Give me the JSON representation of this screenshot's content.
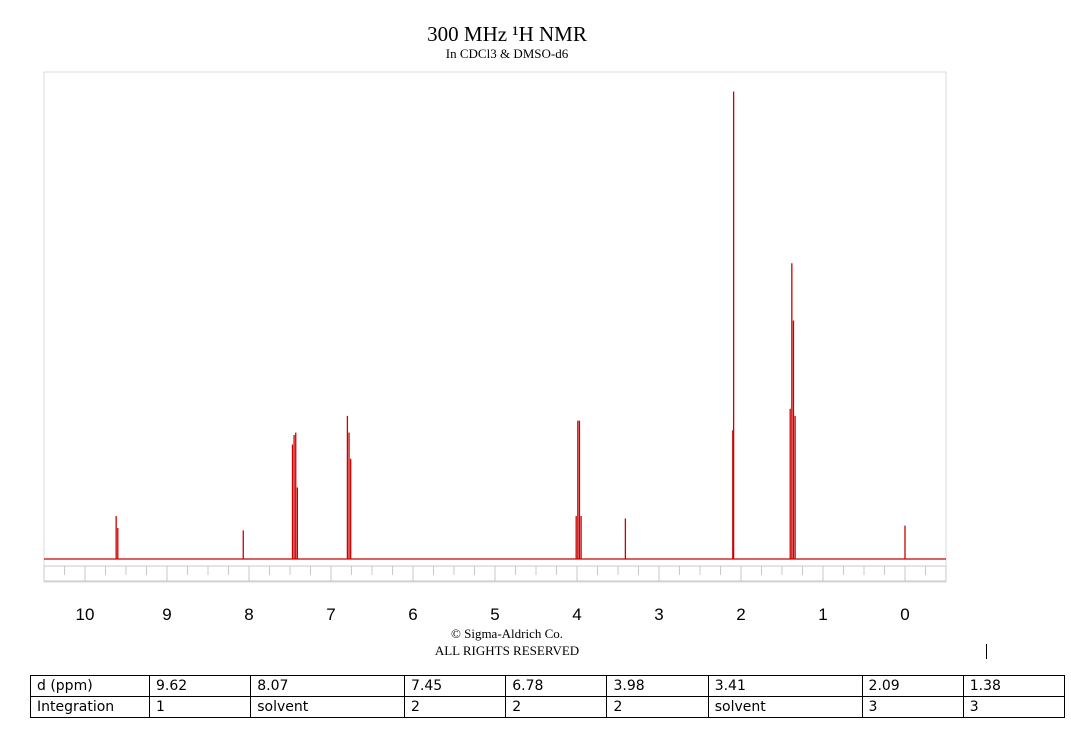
{
  "chart_data": {
    "type": "line",
    "title": "300 MHz ¹H NMR",
    "subtitle": "In CDCl3 & DMSO-d6",
    "xlim": [
      10.5,
      -0.5
    ],
    "ylim": [
      0,
      1
    ],
    "x_ticks": [
      10,
      9,
      8,
      7,
      6,
      5,
      4,
      3,
      2,
      1,
      0
    ],
    "grid": false,
    "line_color": "#cc0000",
    "peaks": [
      {
        "x": 9.62,
        "y": 0.09
      },
      {
        "x": 9.6,
        "y": 0.065
      },
      {
        "x": 8.07,
        "y": 0.06
      },
      {
        "x": 7.47,
        "y": 0.24
      },
      {
        "x": 7.45,
        "y": 0.26
      },
      {
        "x": 7.43,
        "y": 0.265
      },
      {
        "x": 7.41,
        "y": 0.15
      },
      {
        "x": 6.8,
        "y": 0.3
      },
      {
        "x": 6.78,
        "y": 0.265
      },
      {
        "x": 6.76,
        "y": 0.21
      },
      {
        "x": 4.01,
        "y": 0.09
      },
      {
        "x": 3.99,
        "y": 0.29
      },
      {
        "x": 3.97,
        "y": 0.29
      },
      {
        "x": 3.95,
        "y": 0.09
      },
      {
        "x": 3.41,
        "y": 0.085
      },
      {
        "x": 2.09,
        "y": 0.98
      },
      {
        "x": 2.1,
        "y": 0.27
      },
      {
        "x": 1.4,
        "y": 0.315
      },
      {
        "x": 1.38,
        "y": 0.62
      },
      {
        "x": 1.36,
        "y": 0.5
      },
      {
        "x": 1.34,
        "y": 0.3
      },
      {
        "x": 0.0,
        "y": 0.07
      }
    ]
  },
  "copyright": {
    "line1": "© Sigma-Aldrich Co.",
    "line2": "ALL RIGHTS RESERVED"
  },
  "table": {
    "rows": [
      {
        "header": "d (ppm)",
        "cells": [
          "9.62",
          "8.07",
          "7.45",
          "6.78",
          "3.98",
          "3.41",
          "2.09",
          "1.38"
        ]
      },
      {
        "header": "Integration",
        "cells": [
          "1",
          "solvent",
          "2",
          "2",
          "2",
          "solvent",
          "3",
          "3"
        ]
      }
    ]
  }
}
